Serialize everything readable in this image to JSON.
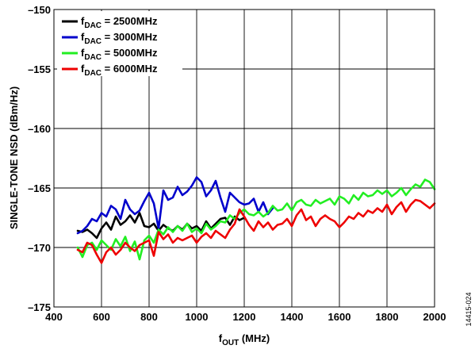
{
  "figure_id": "14415-024",
  "chart_data": {
    "type": "line",
    "xlabel": {
      "main": "f",
      "sub": "OUT",
      "unit": " (MHz)"
    },
    "ylabel": "SINGLE-TONE NSD (dBm/Hz)",
    "xlim": [
      400,
      2000
    ],
    "ylim": [
      -175,
      -150
    ],
    "x_ticks": [
      400,
      600,
      800,
      1000,
      1200,
      1400,
      1600,
      1800,
      2000
    ],
    "y_ticks": [
      -150,
      -155,
      -160,
      -165,
      -170,
      -175
    ],
    "x_tick_labels": [
      "400",
      "600",
      "800",
      "1000",
      "1200",
      "1400",
      "1600",
      "1800",
      "2000"
    ],
    "y_tick_labels": [
      "–150",
      "–155",
      "–160",
      "–165",
      "–170",
      "–175"
    ],
    "grid": true,
    "legend_position": "top-left",
    "series": [
      {
        "name": "f_DAC = 2500MHz",
        "legend": {
          "main": "f",
          "sub": "DAC",
          "rest": " = 2500MHz"
        },
        "color": "#000000",
        "x": [
          500,
          520,
          540,
          560,
          580,
          600,
          620,
          640,
          660,
          680,
          700,
          720,
          740,
          760,
          780,
          800,
          820,
          840,
          860,
          880,
          900,
          920,
          940,
          960,
          980,
          1000,
          1020,
          1040,
          1060,
          1080,
          1100,
          1120,
          1140,
          1160,
          1180,
          1200
        ],
        "y": [
          -168.6,
          -168.7,
          -168.5,
          -168.8,
          -169.2,
          -168.4,
          -167.9,
          -168.5,
          -167.4,
          -168.1,
          -167.8,
          -167.3,
          -167.9,
          -167.1,
          -168.2,
          -168.3,
          -168.0,
          -168.6,
          -168.1,
          -168.4,
          -168.6,
          -168.2,
          -168.5,
          -168.0,
          -168.4,
          -168.2,
          -168.6,
          -167.8,
          -168.4,
          -168.0,
          -167.6,
          -167.5,
          -168.1,
          -167.4,
          -167.7,
          -167.5
        ]
      },
      {
        "name": "f_DAC = 3000MHz",
        "legend": {
          "main": "f",
          "sub": "DAC",
          "rest": " = 3000MHz"
        },
        "color": "#0000cc",
        "x": [
          500,
          520,
          540,
          560,
          580,
          600,
          620,
          640,
          660,
          680,
          700,
          720,
          740,
          760,
          780,
          800,
          820,
          840,
          860,
          880,
          900,
          920,
          940,
          960,
          980,
          1000,
          1020,
          1040,
          1060,
          1080,
          1100,
          1120,
          1140,
          1160,
          1180,
          1200,
          1220,
          1240,
          1260,
          1280,
          1300,
          1320
        ],
        "y": [
          -168.8,
          -168.6,
          -168.2,
          -167.6,
          -167.8,
          -167.1,
          -167.4,
          -166.5,
          -166.8,
          -167.6,
          -166.0,
          -166.8,
          -167.2,
          -166.9,
          -166.1,
          -165.4,
          -166.3,
          -168.4,
          -165.2,
          -166.0,
          -165.8,
          -164.9,
          -165.6,
          -165.3,
          -164.8,
          -164.1,
          -164.5,
          -165.7,
          -165.2,
          -164.4,
          -165.8,
          -167.0,
          -165.4,
          -165.8,
          -166.2,
          -166.4,
          -166.3,
          -165.9,
          -167.0,
          -166.2,
          -167.2,
          -166.7
        ]
      },
      {
        "name": "f_DAC = 5000MHz",
        "legend": {
          "main": "f",
          "sub": "DAC",
          "rest": " = 5000MHz"
        },
        "color": "#22ee22",
        "x": [
          500,
          520,
          540,
          560,
          580,
          600,
          620,
          640,
          660,
          680,
          700,
          720,
          740,
          760,
          780,
          800,
          820,
          840,
          860,
          880,
          900,
          920,
          940,
          960,
          980,
          1000,
          1020,
          1040,
          1060,
          1080,
          1100,
          1120,
          1140,
          1160,
          1180,
          1200,
          1220,
          1240,
          1260,
          1280,
          1300,
          1320,
          1340,
          1360,
          1380,
          1400,
          1420,
          1440,
          1460,
          1480,
          1500,
          1520,
          1540,
          1560,
          1580,
          1600,
          1620,
          1640,
          1660,
          1680,
          1700,
          1720,
          1740,
          1760,
          1780,
          1800,
          1820,
          1840,
          1860,
          1880,
          1900,
          1920,
          1940,
          1960,
          1980,
          2000
        ],
        "y": [
          -170.0,
          -170.8,
          -169.8,
          -169.6,
          -170.2,
          -169.4,
          -169.8,
          -170.2,
          -169.3,
          -169.9,
          -169.1,
          -170.3,
          -169.5,
          -171.0,
          -169.4,
          -169.0,
          -169.6,
          -168.5,
          -168.9,
          -168.3,
          -168.7,
          -168.2,
          -168.6,
          -168.0,
          -168.7,
          -168.4,
          -168.8,
          -168.0,
          -168.5,
          -168.2,
          -167.8,
          -167.9,
          -167.3,
          -167.6,
          -167.1,
          -166.8,
          -167.2,
          -167.3,
          -167.0,
          -167.4,
          -167.1,
          -166.5,
          -166.9,
          -166.8,
          -166.3,
          -166.9,
          -166.2,
          -166.0,
          -166.4,
          -166.5,
          -166.0,
          -166.3,
          -166.1,
          -165.9,
          -166.4,
          -165.7,
          -165.9,
          -166.3,
          -165.6,
          -166.0,
          -165.4,
          -165.7,
          -165.6,
          -165.2,
          -165.5,
          -165.2,
          -165.7,
          -165.4,
          -165.0,
          -165.6,
          -165.1,
          -164.7,
          -164.9,
          -164.3,
          -164.5,
          -165.1
        ]
      },
      {
        "name": "f_DAC = 6000MHz",
        "legend": {
          "main": "f",
          "sub": "DAC",
          "rest": " = 6000MHz"
        },
        "color": "#ee0000",
        "x": [
          500,
          520,
          540,
          560,
          580,
          600,
          620,
          640,
          660,
          680,
          700,
          720,
          740,
          760,
          780,
          800,
          820,
          840,
          860,
          880,
          900,
          920,
          940,
          960,
          980,
          1000,
          1020,
          1040,
          1060,
          1080,
          1100,
          1120,
          1140,
          1160,
          1180,
          1200,
          1220,
          1240,
          1260,
          1280,
          1300,
          1320,
          1340,
          1360,
          1380,
          1400,
          1420,
          1440,
          1460,
          1480,
          1500,
          1520,
          1540,
          1560,
          1580,
          1600,
          1620,
          1640,
          1660,
          1680,
          1700,
          1720,
          1740,
          1760,
          1780,
          1800,
          1820,
          1840,
          1860,
          1880,
          1900,
          1920,
          1940,
          1960,
          1980,
          2000
        ],
        "y": [
          -170.2,
          -170.4,
          -169.6,
          -169.8,
          -170.6,
          -171.3,
          -170.4,
          -170.0,
          -170.6,
          -170.2,
          -169.6,
          -170.0,
          -170.3,
          -169.8,
          -169.6,
          -169.4,
          -170.7,
          -168.7,
          -169.3,
          -168.9,
          -169.6,
          -169.2,
          -169.4,
          -169.2,
          -169.0,
          -169.6,
          -169.1,
          -168.8,
          -169.2,
          -168.6,
          -168.9,
          -169.2,
          -168.5,
          -168.0,
          -166.8,
          -167.4,
          -168.1,
          -168.6,
          -167.8,
          -168.3,
          -167.9,
          -168.5,
          -168.1,
          -168.0,
          -167.6,
          -168.2,
          -167.3,
          -166.8,
          -167.7,
          -167.4,
          -168.2,
          -167.6,
          -167.3,
          -167.6,
          -167.8,
          -168.3,
          -167.9,
          -167.4,
          -167.6,
          -167.1,
          -167.4,
          -166.9,
          -167.1,
          -166.7,
          -167.0,
          -166.4,
          -167.2,
          -166.6,
          -166.2,
          -167.0,
          -166.4,
          -166.0,
          -166.1,
          -166.4,
          -166.7,
          -166.3
        ]
      }
    ]
  }
}
